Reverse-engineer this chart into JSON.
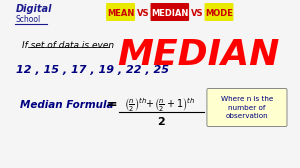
{
  "bg_color": "#f5f5f5",
  "title_text": "MEDIAN",
  "title_color": "#ff0000",
  "header_buttons": [
    {
      "text": "MEAN",
      "bg": "#e8e800",
      "fg": "#cc0000"
    },
    {
      "text": "VS",
      "bg": "#f5f5f5",
      "fg": "#cc0000"
    },
    {
      "text": "MEDIAN",
      "bg": "#cc0000",
      "fg": "#ffffff"
    },
    {
      "text": "VS",
      "bg": "#f5f5f5",
      "fg": "#cc0000"
    },
    {
      "text": "MODE",
      "bg": "#e8e800",
      "fg": "#cc0000"
    }
  ],
  "logo_text1": "Digital",
  "logo_text2": "School",
  "subtitle": "If set of data is even",
  "data_sequence": "12 , 15 , 17 , 19 , 22 , 25",
  "formula_label": "Median Formula",
  "note_text": "Where n is the\nnumber of\nobservation"
}
